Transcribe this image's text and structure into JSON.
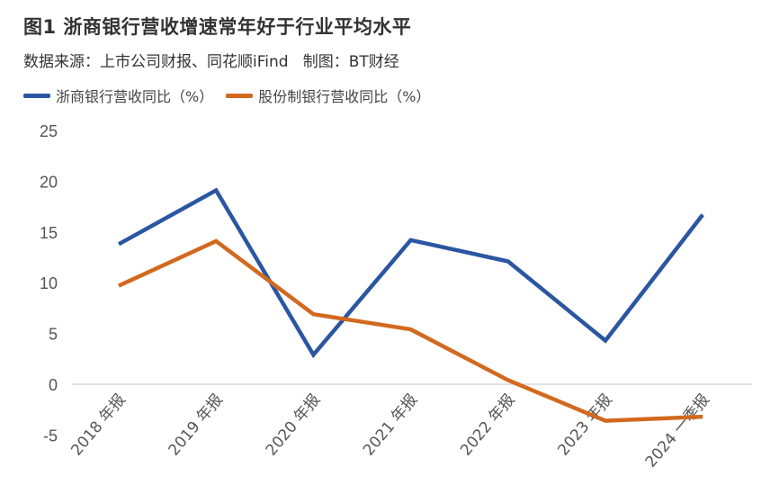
{
  "title": "图1 浙商银行营收增速常年好于行业平均水平",
  "subtitle": "数据来源：上市公司财报、同花顺iFind   制图：BT财经",
  "chart_data": {
    "type": "line",
    "categories": [
      "2018 年报",
      "2019 年报",
      "2020 年报",
      "2021 年报",
      "2022 年报",
      "2023 年报",
      "2024 一季报"
    ],
    "series": [
      {
        "name": "浙商银行营收同比（%）",
        "color": "#2a56a2",
        "values": [
          13.8,
          19.1,
          2.9,
          14.2,
          12.1,
          4.3,
          16.7
        ]
      },
      {
        "name": "股份制银行营收同比（%）",
        "color": "#d2691e",
        "values": [
          9.7,
          14.1,
          6.9,
          5.4,
          0.4,
          -3.6,
          -3.2
        ]
      }
    ],
    "yticks": [
      "25",
      "20",
      "15",
      "10",
      "5",
      "0",
      "-5"
    ],
    "ylim": [
      -5,
      25
    ],
    "grid": false,
    "legend": "top-left"
  }
}
